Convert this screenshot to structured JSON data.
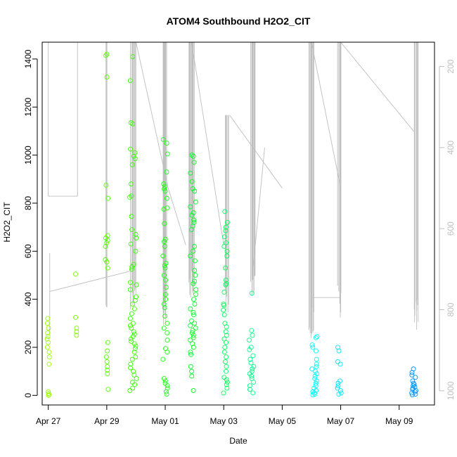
{
  "chart_data": {
    "type": "scatter",
    "title": "ATOM4 Southbound H2O2_CIT",
    "xlabel": "Date",
    "ylabel": "H2O2_CIT",
    "x_ticks": [
      "Apr 27",
      "Apr 29",
      "May 01",
      "May 03",
      "May 05",
      "May 07",
      "May 09"
    ],
    "y_ticks": [
      0,
      200,
      400,
      600,
      800,
      1000,
      1200,
      1400
    ],
    "y2_ticks": [
      200,
      400,
      600,
      800,
      1000
    ],
    "xlim": [
      "Apr 26 19:00",
      "May 10 05:00"
    ],
    "ylim": [
      -40,
      1470
    ],
    "y2lim": [
      1035,
      140
    ],
    "grid": false,
    "legend": "none",
    "colors": {
      "points_early": "#99ff00",
      "points_mid": "#00ff22",
      "points_late": "#00ffff",
      "points_end": "#0099ff",
      "altitude_line": "#bebebe"
    },
    "series": [
      {
        "values": [
          {
            "day": "Apr 27",
            "h2o2": [
              320,
              300,
              280,
              260,
              245,
              235,
              220,
              200,
              180,
              160,
              130,
              15,
              8,
              3,
              0
            ]
          },
          {
            "day": "Apr 28",
            "h2o2": [
              505,
              325,
              280,
              265,
              250
            ]
          },
          {
            "day": "Apr 29",
            "h2o2": [
              1420,
              1415,
              1325,
              875,
              820,
              665,
              655,
              645,
              635,
              620,
              565,
              555,
              530,
              220,
              185,
              160,
              140,
              120,
              105,
              90,
              25
            ]
          },
          {
            "day": "Apr 30",
            "h2o2": [
              1410,
              1310,
              1135,
              1130,
              1025,
              1010,
              995,
              985,
              960,
              880,
              830,
              825,
              745,
              690,
              670,
              655,
              630,
              600,
              545,
              535,
              525,
              470,
              460,
              440,
              410,
              395,
              380,
              360,
              340,
              320,
              300,
              290,
              280,
              265,
              255,
              245,
              235,
              225,
              215,
              205,
              195,
              180,
              160,
              150,
              130,
              115,
              100,
              85,
              70,
              55,
              45,
              30,
              20
            ]
          },
          {
            "day": "May 01",
            "h2o2": [
              1065,
              1050,
              1005,
              930,
              880,
              870,
              860,
              850,
              820,
              780,
              775,
              715,
              650,
              640,
              620,
              580,
              550,
              540,
              530,
              500,
              480,
              450,
              420,
              400,
              380,
              365,
              330,
              300,
              280,
              260,
              230,
              195,
              180,
              150,
              70,
              60,
              50,
              40,
              30,
              15,
              5
            ]
          },
          {
            "day": "May 02",
            "h2o2": [
              1000,
              995,
              970,
              925,
              890,
              860,
              850,
              805,
              785,
              760,
              750,
              730,
              720,
              705,
              690,
              620,
              600,
              580,
              560,
              520,
              500,
              475,
              465,
              440,
              420,
              400,
              380,
              360,
              345,
              335,
              310,
              300,
              290,
              280,
              270,
              260,
              250,
              240,
              230,
              215,
              200,
              180,
              170,
              120,
              100,
              80,
              20
            ]
          },
          {
            "day": "May 03",
            "h2o2": [
              765,
              720,
              700,
              685,
              660,
              635,
              620,
              600,
              580,
              530,
              480,
              465,
              460,
              430,
              380,
              375,
              355,
              335,
              300,
              285,
              265,
              250,
              235,
              220,
              200,
              180,
              160,
              140,
              120,
              100,
              75,
              65,
              55,
              45,
              30,
              10
            ]
          },
          {
            "day": "May 04",
            "h2o2": [
              425,
              270,
              250,
              230,
              200,
              190,
              165,
              150,
              135,
              120,
              110,
              100,
              90,
              80,
              70,
              55,
              40,
              25,
              10
            ]
          },
          {
            "day": "May 06",
            "h2o2": [
              245,
              240,
              210,
              200,
              185,
              150,
              130,
              120,
              110,
              100,
              90,
              80,
              70,
              60,
              50,
              40,
              30,
              20,
              15,
              10,
              5,
              2
            ]
          },
          {
            "day": "May 07",
            "h2o2": [
              200,
              185,
              140,
              130,
              60,
              50,
              40,
              30,
              20,
              10,
              5
            ]
          },
          {
            "day": "May 09",
            "h2o2": [
              110,
              95,
              85,
              75,
              60,
              50,
              45,
              40,
              35,
              30,
              25,
              20,
              15,
              10,
              5,
              2
            ]
          }
        ]
      }
    ]
  }
}
